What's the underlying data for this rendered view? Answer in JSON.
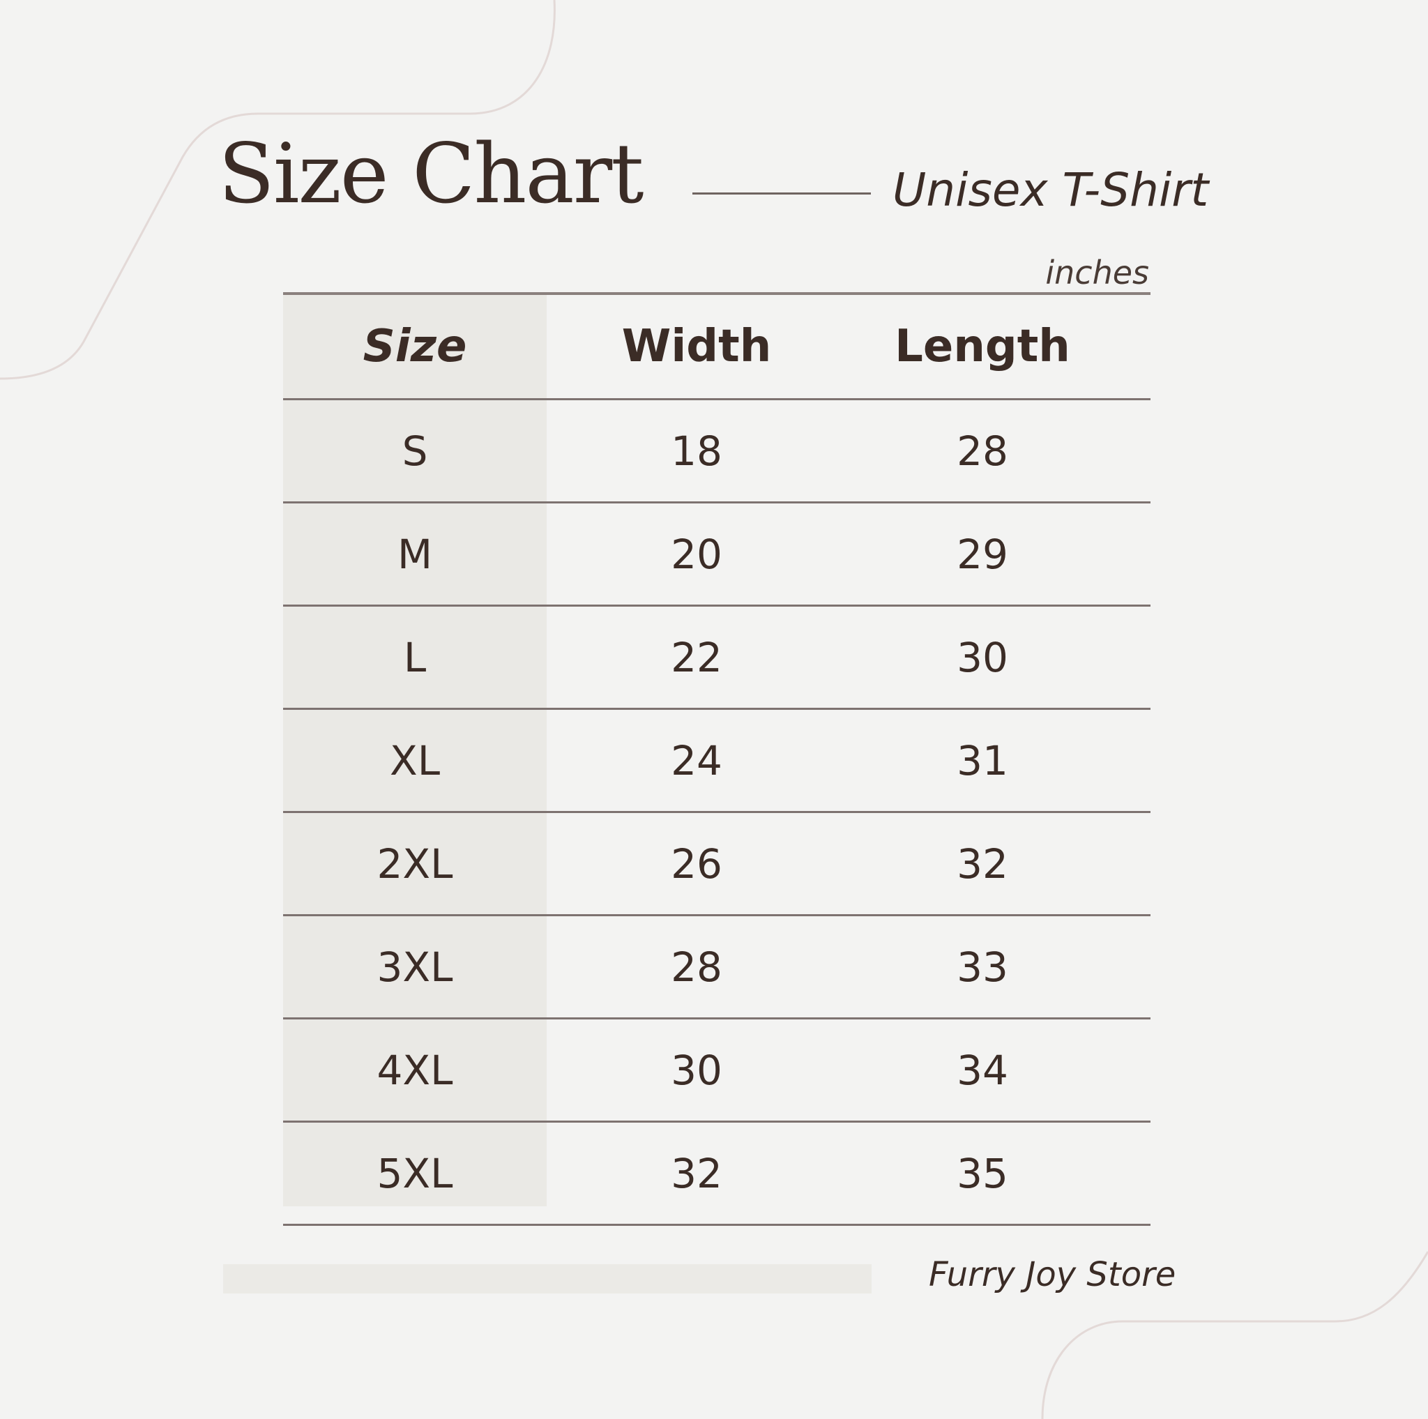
{
  "header": {
    "title": "Size Chart",
    "subtitle": "Unisex T-Shirt",
    "units": "inches"
  },
  "table": {
    "columns": [
      "Size",
      "Width",
      "Length"
    ],
    "rows": [
      [
        "S",
        "18",
        "28"
      ],
      [
        "M",
        "20",
        "29"
      ],
      [
        "L",
        "22",
        "30"
      ],
      [
        "XL",
        "24",
        "31"
      ],
      [
        "2XL",
        "26",
        "32"
      ],
      [
        "3XL",
        "28",
        "33"
      ],
      [
        "4XL",
        "30",
        "34"
      ],
      [
        "5XL",
        "32",
        "35"
      ]
    ]
  },
  "footer": {
    "store": "Furry Joy Store"
  },
  "colors": {
    "background": "#f3f3f2",
    "text": "#3b2c26",
    "size_column": "#eae9e5",
    "rule": "#7d7270",
    "decor_line": "#e0d6d4"
  }
}
